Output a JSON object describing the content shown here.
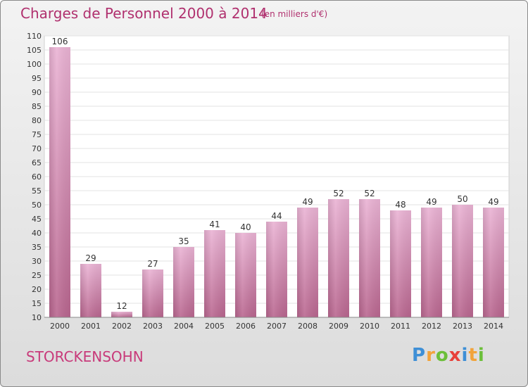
{
  "title": "Charges de Personnel 2000 à 2014",
  "unit_note": "(en milliers d'€)",
  "commune": "STORCKENSOHN",
  "logo": {
    "letters": [
      "P",
      "r",
      "o",
      "x",
      "i",
      "t",
      "i"
    ],
    "colors": [
      "#3e8fd6",
      "#f2a33a",
      "#6cbf3a",
      "#e8403a",
      "#3e8fd6",
      "#f2a33a",
      "#6cbf3a"
    ]
  },
  "chart_data": {
    "type": "bar",
    "categories": [
      "2000",
      "2001",
      "2002",
      "2003",
      "2004",
      "2005",
      "2006",
      "2007",
      "2008",
      "2009",
      "2010",
      "2011",
      "2012",
      "2013",
      "2014"
    ],
    "values": [
      106,
      29,
      12,
      27,
      35,
      41,
      40,
      44,
      49,
      52,
      52,
      48,
      49,
      50,
      49
    ],
    "data_labels": [
      "106",
      "29",
      "12",
      "27",
      "35",
      "41",
      "40",
      "44",
      "49",
      "52",
      "52",
      "48",
      "49",
      "50",
      "49"
    ],
    "ylim": [
      10,
      110
    ],
    "yticks": [
      "10",
      "15",
      "20",
      "25",
      "30",
      "35",
      "40",
      "45",
      "50",
      "55",
      "60",
      "65",
      "70",
      "75",
      "80",
      "85",
      "90",
      "95",
      "100",
      "105",
      "110"
    ],
    "grid": true,
    "bar_color": "#e6a3c9"
  }
}
